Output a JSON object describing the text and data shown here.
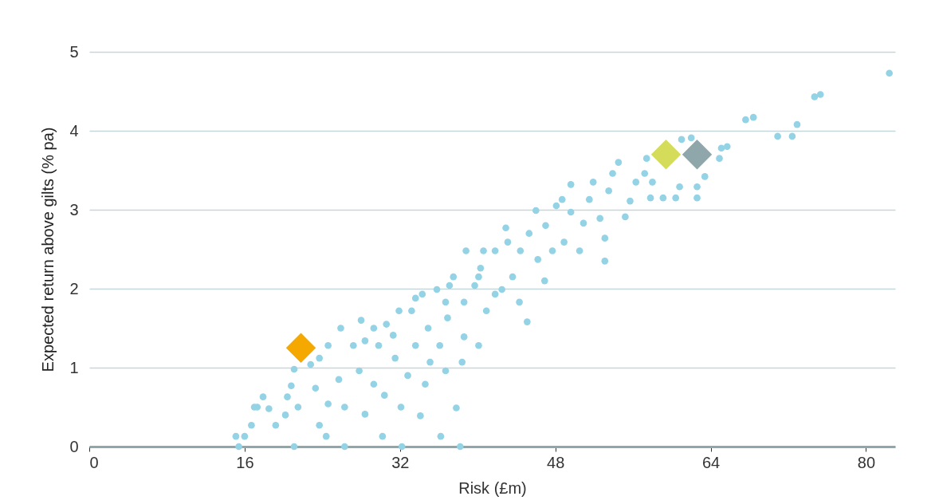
{
  "chart_data": {
    "type": "scatter",
    "xlabel": "Risk (£m)",
    "ylabel": "Expected return above gilts (% pa)",
    "xlim": [
      0,
      83
    ],
    "ylim": [
      0,
      5
    ],
    "xticks": [
      0,
      16,
      32,
      48,
      64,
      80
    ],
    "yticks": [
      0,
      1,
      2,
      3,
      4,
      5
    ],
    "grid": "y",
    "legend": false,
    "series": [
      {
        "color": "#93d3e5",
        "marker": "circle",
        "x": [
          15.1,
          16,
          15.4,
          16.7,
          17,
          17.9,
          17.3,
          18.5,
          21.1,
          19.2,
          20.2,
          20.4,
          20.8,
          21.5,
          21.1,
          23.3,
          24.4,
          23.7,
          24.6,
          25.7,
          26.3,
          26.3,
          25.9,
          28,
          28.4,
          27.8,
          28.4,
          29.3,
          30.2,
          30.4,
          31.5,
          31.3,
          32.2,
          32.1,
          32.8,
          33.6,
          33.2,
          34.6,
          34.1,
          35.1,
          34.9,
          34.3,
          36.2,
          36.7,
          36.1,
          36.9,
          37.1,
          37.8,
          38.2,
          38.4,
          38.6,
          38.6,
          38.8,
          40.1,
          39.7,
          40.3,
          40.9,
          41.8,
          41.8,
          42.5,
          42.9,
          43.6,
          44.3,
          45.1,
          44.4,
          45.3,
          46,
          46.2,
          46.9,
          47,
          47.7,
          48.1,
          48.9,
          49.6,
          49.6,
          50.5,
          50.9,
          51.5,
          51.9,
          52.6,
          53.1,
          53.1,
          53.5,
          53.9,
          54.5,
          55.2,
          55.7,
          56.3,
          57.2,
          57.4,
          57.8,
          59.1,
          58,
          60.4,
          61,
          62,
          60.8,
          62.6,
          62.6,
          63.4,
          65.1,
          65.7,
          64.9,
          67.6,
          68.4,
          70.9,
          72.4,
          72.9,
          74.7,
          75.3,
          82.4,
          40.6,
          43.1,
          40.1,
          37.5,
          35.8,
          36.7,
          33.6,
          31.9,
          30.6,
          29.3,
          29.8,
          27.2,
          24.6,
          23.7,
          22.8,
          48.7
        ],
        "values": [
          0.13,
          0.13,
          0,
          0.27,
          0.5,
          0.63,
          0.5,
          0.48,
          0,
          0.27,
          0.4,
          0.63,
          0.77,
          0.5,
          0.98,
          0.74,
          0.13,
          0.27,
          0.54,
          0.85,
          0,
          0.5,
          1.5,
          1.6,
          1.34,
          0.96,
          0.41,
          0.79,
          0.13,
          0.65,
          1.12,
          1.41,
          0,
          0.5,
          0.9,
          1.28,
          1.72,
          0.79,
          0.39,
          1.07,
          1.5,
          1.93,
          0.13,
          0.96,
          1.28,
          1.63,
          2.04,
          0.49,
          0,
          1.07,
          1.39,
          1.83,
          2.48,
          1.28,
          2.04,
          2.26,
          1.72,
          2.48,
          1.93,
          1.99,
          2.77,
          2.15,
          1.83,
          1.58,
          2.48,
          2.7,
          2.99,
          2.37,
          2.1,
          2.8,
          2.48,
          3.05,
          2.59,
          2.97,
          3.32,
          2.48,
          2.83,
          3.13,
          3.35,
          2.89,
          2.35,
          2.64,
          3.24,
          3.46,
          3.6,
          2.91,
          3.11,
          3.35,
          3.46,
          3.65,
          3.15,
          3.15,
          3.35,
          3.15,
          3.89,
          3.91,
          3.29,
          3.15,
          3.29,
          3.42,
          3.78,
          3.8,
          3.65,
          4.14,
          4.17,
          3.93,
          3.93,
          4.08,
          4.43,
          4.46,
          4.73,
          2.48,
          2.59,
          2.15,
          2.15,
          1.99,
          1.83,
          1.88,
          1.72,
          1.55,
          1.5,
          1.28,
          1.28,
          1.28,
          1.12,
          1.04,
          3.13
        ]
      },
      {
        "color": "#f5a800",
        "marker": "diamond",
        "x": [
          21.8
        ],
        "values": [
          1.25
        ]
      },
      {
        "color": "#d4dc5a",
        "marker": "diamond",
        "x": [
          59.4
        ],
        "values": [
          3.7
        ]
      },
      {
        "color": "#8fa6ab",
        "marker": "diamond",
        "x": [
          62.6
        ],
        "values": [
          3.7
        ]
      }
    ]
  }
}
